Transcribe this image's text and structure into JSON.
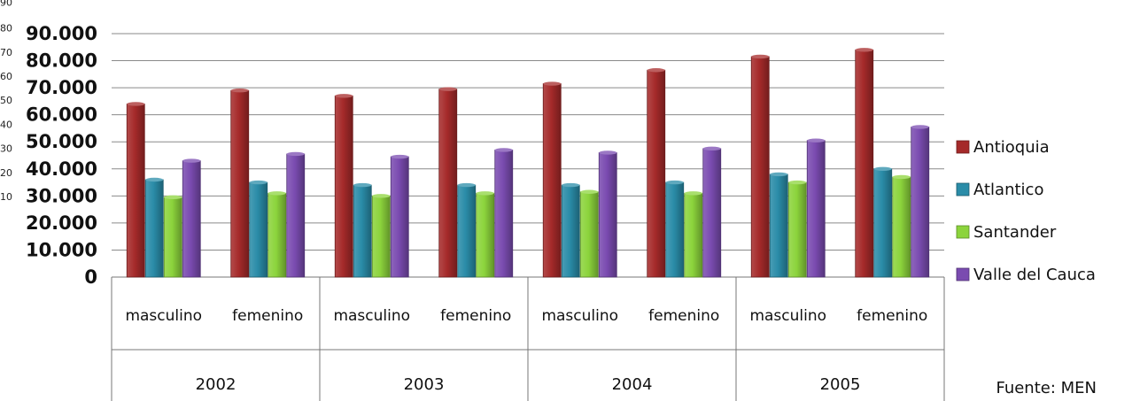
{
  "chart_data": {
    "type": "bar",
    "title": "",
    "ylim": [
      0,
      90000
    ],
    "y_ticks": [
      "0",
      "10.000",
      "20.000",
      "30.000",
      "40.000",
      "50.000",
      "60.000",
      "70.000",
      "80.000",
      "90.000"
    ],
    "y_ticks_secondary": [
      "10",
      "20",
      "30",
      "40",
      "50",
      "60",
      "70",
      "80",
      "90"
    ],
    "grid": true,
    "legend_position": "right",
    "groups": [
      {
        "year": "2002",
        "categories": [
          "masculino",
          "femenino"
        ]
      },
      {
        "year": "2003",
        "categories": [
          "masculino",
          "femenino"
        ]
      },
      {
        "year": "2004",
        "categories": [
          "masculino",
          "femenino"
        ]
      },
      {
        "year": "2005",
        "categories": [
          "masculino",
          "femenino"
        ]
      }
    ],
    "series": [
      {
        "name": "Antioquia",
        "color": "#a52a2a",
        "values": [
          64000,
          69000,
          67000,
          69500,
          71500,
          76500,
          81500,
          84000
        ]
      },
      {
        "name": "Atlantico",
        "color": "#2a8ca8",
        "values": [
          36000,
          35000,
          34000,
          34000,
          34000,
          35000,
          38000,
          40000
        ]
      },
      {
        "name": "Santander",
        "color": "#8cd43c",
        "values": [
          29500,
          31000,
          30000,
          31000,
          31500,
          31000,
          35000,
          37000
        ]
      },
      {
        "name": "Valle del Cauca",
        "color": "#7a4bb0",
        "values": [
          43000,
          45500,
          44500,
          47000,
          46000,
          47500,
          50500,
          55500
        ]
      }
    ],
    "source": "Fuente: MEN"
  }
}
